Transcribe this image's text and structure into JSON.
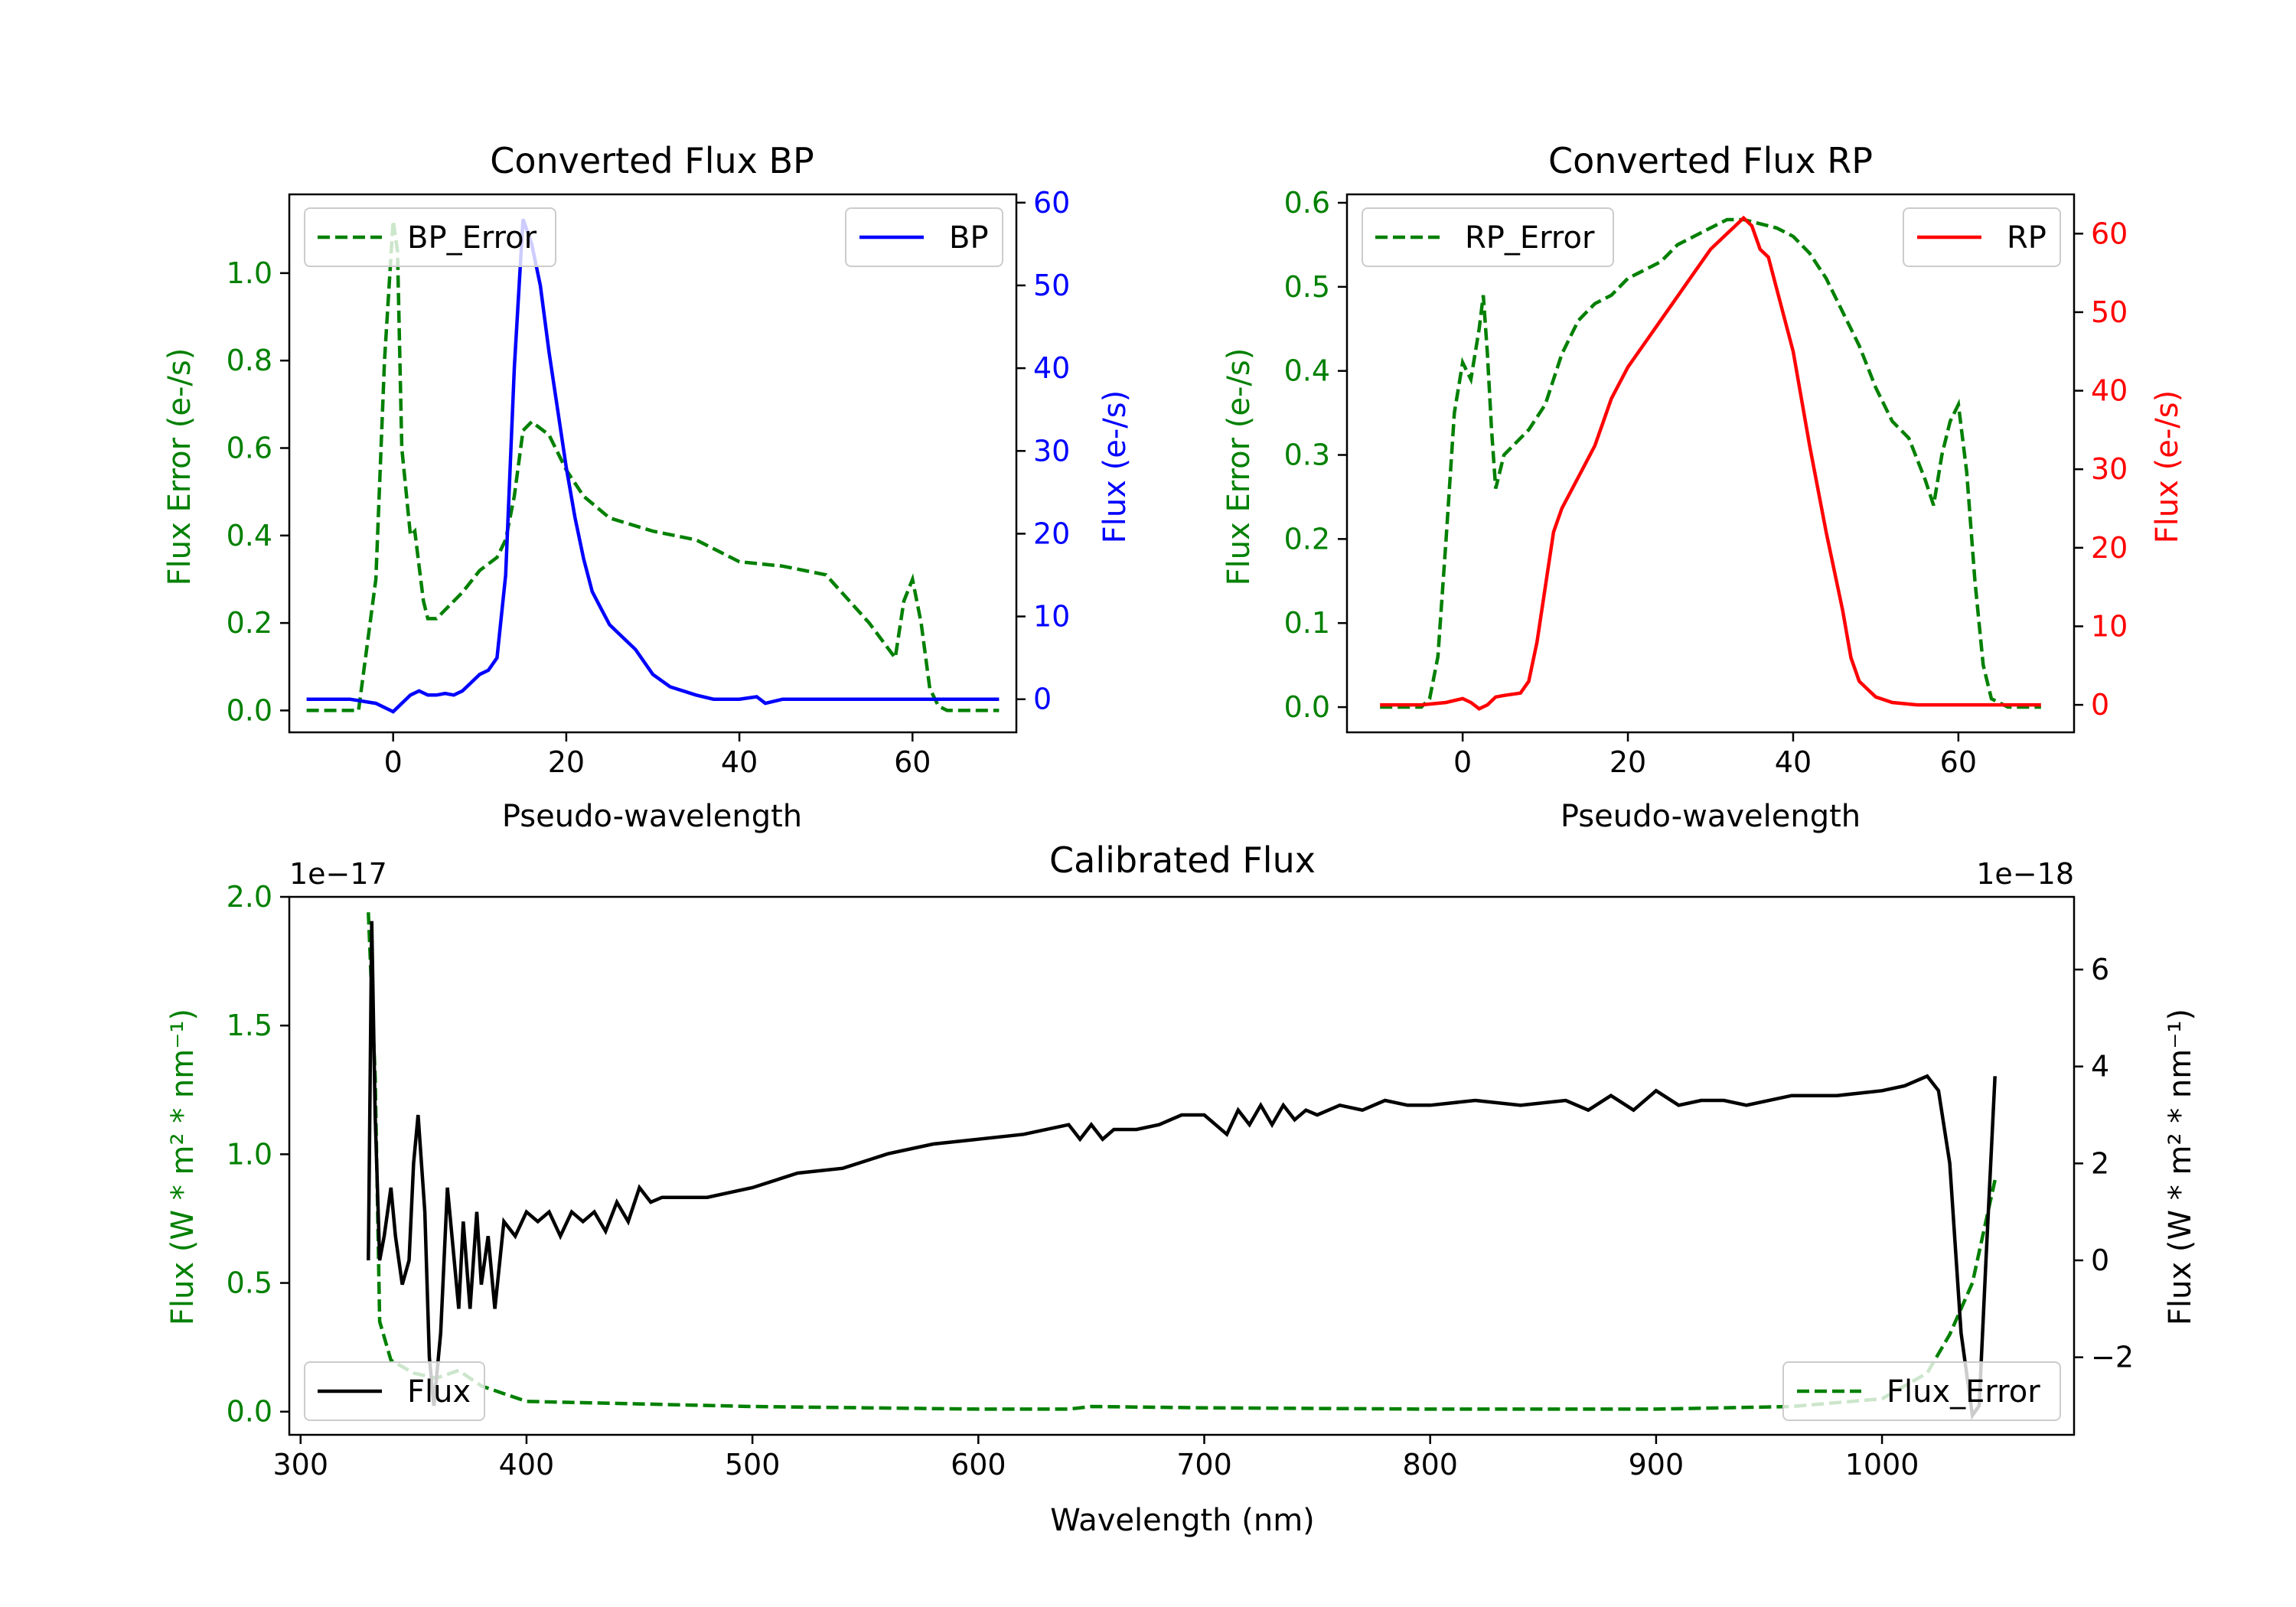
{
  "chart_data": [
    {
      "id": "bp",
      "type": "line",
      "title": "Converted Flux BP",
      "xlabel": "Pseudo-wavelength",
      "xlim": [
        -12,
        72
      ],
      "xticks": [
        0,
        20,
        40,
        60
      ],
      "left_axis": {
        "label": "Flux Error (e-/s)",
        "color": "#008000",
        "ylim": [
          -0.05,
          1.18
        ],
        "ticks": [
          0.0,
          0.2,
          0.4,
          0.6,
          0.8,
          1.0
        ],
        "tick_labels": [
          "0.0",
          "0.2",
          "0.4",
          "0.6",
          "0.8",
          "1.0"
        ]
      },
      "right_axis": {
        "label": "Flux (e-/s)",
        "color": "#0000ff",
        "ylim": [
          -4,
          61
        ],
        "ticks": [
          0,
          10,
          20,
          30,
          40,
          50,
          60
        ],
        "tick_labels": [
          "0",
          "10",
          "20",
          "30",
          "40",
          "50",
          "60"
        ]
      },
      "series": [
        {
          "name": "BP_Error",
          "axis": "left",
          "style": "dashed",
          "color": "#008000",
          "x": [
            -10,
            -4,
            -2,
            -1,
            0,
            0.5,
            1,
            2,
            2.5,
            3,
            3.5,
            4,
            5,
            8,
            10,
            12,
            13,
            14,
            15,
            16,
            18,
            20,
            22,
            25,
            30,
            35,
            40,
            45,
            50,
            55,
            58,
            59,
            60,
            61,
            62,
            63,
            64,
            66,
            70
          ],
          "values": [
            0.0,
            0.0,
            0.3,
            0.8,
            1.12,
            1.05,
            0.6,
            0.4,
            0.41,
            0.33,
            0.25,
            0.21,
            0.21,
            0.27,
            0.32,
            0.35,
            0.39,
            0.49,
            0.64,
            0.66,
            0.63,
            0.55,
            0.49,
            0.44,
            0.41,
            0.39,
            0.34,
            0.33,
            0.31,
            0.2,
            0.12,
            0.25,
            0.3,
            0.2,
            0.05,
            0.01,
            0.0,
            0.0,
            0.0
          ]
        },
        {
          "name": "BP",
          "axis": "right",
          "style": "solid",
          "color": "#0000ff",
          "x": [
            -10,
            -5,
            -2,
            0,
            1,
            2,
            3,
            4,
            5,
            6,
            7,
            8,
            9,
            10,
            11,
            12,
            13,
            14,
            15,
            16,
            17,
            18,
            19,
            20,
            21,
            22,
            23,
            24,
            25,
            26,
            28,
            30,
            32,
            35,
            37,
            40,
            42,
            43,
            45,
            50,
            55,
            60,
            65,
            70
          ],
          "values": [
            0,
            0,
            -0.5,
            -1.5,
            -0.5,
            0.5,
            1,
            0.5,
            0.5,
            0.7,
            0.5,
            1,
            2,
            3,
            3.5,
            5,
            15,
            40,
            58,
            55,
            50,
            42,
            35,
            28,
            22,
            17,
            13,
            11,
            9,
            8,
            6,
            3,
            1.5,
            0.5,
            0,
            0,
            0.3,
            -0.5,
            0,
            0,
            0,
            0,
            0,
            0
          ]
        }
      ],
      "legend": [
        {
          "label": "BP_Error",
          "location": "upper-left"
        },
        {
          "label": "BP",
          "location": "upper-right"
        }
      ]
    },
    {
      "id": "rp",
      "type": "line",
      "title": "Converted Flux RP",
      "xlabel": "Pseudo-wavelength",
      "xlim": [
        -14,
        74
      ],
      "xticks": [
        0,
        20,
        40,
        60
      ],
      "left_axis": {
        "label": "Flux Error (e-/s)",
        "color": "#008000",
        "ylim": [
          -0.03,
          0.61
        ],
        "ticks": [
          0.0,
          0.1,
          0.2,
          0.3,
          0.4,
          0.5,
          0.6
        ],
        "tick_labels": [
          "0.0",
          "0.1",
          "0.2",
          "0.3",
          "0.4",
          "0.5",
          "0.6"
        ]
      },
      "right_axis": {
        "label": "Flux (e-/s)",
        "color": "#ff0000",
        "ylim": [
          -3.5,
          65
        ],
        "ticks": [
          0,
          10,
          20,
          30,
          40,
          50,
          60
        ],
        "tick_labels": [
          "0",
          "10",
          "20",
          "30",
          "40",
          "50",
          "60"
        ]
      },
      "series": [
        {
          "name": "RP_Error",
          "axis": "left",
          "style": "dashed",
          "color": "#008000",
          "x": [
            -10,
            -5,
            -4,
            -3,
            -2,
            -1,
            0,
            1,
            1.5,
            2,
            2.5,
            3,
            3.5,
            4,
            5,
            6,
            8,
            10,
            12,
            14,
            16,
            18,
            20,
            22,
            24,
            26,
            28,
            30,
            32,
            34,
            36,
            38,
            40,
            42,
            44,
            46,
            48,
            50,
            52,
            54,
            56,
            57,
            58,
            59,
            60,
            61,
            62,
            63,
            64,
            66,
            70
          ],
          "values": [
            0.0,
            0.0,
            0.01,
            0.06,
            0.2,
            0.35,
            0.41,
            0.39,
            0.42,
            0.45,
            0.49,
            0.42,
            0.33,
            0.26,
            0.3,
            0.31,
            0.33,
            0.36,
            0.42,
            0.46,
            0.48,
            0.49,
            0.51,
            0.52,
            0.53,
            0.55,
            0.56,
            0.57,
            0.58,
            0.58,
            0.575,
            0.57,
            0.56,
            0.54,
            0.51,
            0.47,
            0.43,
            0.38,
            0.34,
            0.32,
            0.27,
            0.24,
            0.3,
            0.34,
            0.36,
            0.28,
            0.15,
            0.05,
            0.01,
            0.0,
            0.0
          ]
        },
        {
          "name": "RP",
          "axis": "right",
          "style": "solid",
          "color": "#ff0000",
          "x": [
            -10,
            -5,
            -2,
            0,
            1,
            2,
            3,
            4,
            5,
            7,
            8,
            9,
            10,
            11,
            12,
            13,
            14,
            15,
            16,
            17,
            18,
            20,
            22,
            24,
            26,
            28,
            30,
            32,
            33,
            34,
            35,
            36,
            37,
            38,
            40,
            42,
            44,
            46,
            47,
            48,
            49,
            50,
            52,
            55,
            60,
            65,
            70
          ],
          "values": [
            0,
            0,
            0.3,
            0.8,
            0.3,
            -0.5,
            0,
            1,
            1.2,
            1.5,
            3,
            8,
            15,
            22,
            25,
            27,
            29,
            31,
            33,
            36,
            39,
            43,
            46,
            49,
            52,
            55,
            58,
            60,
            61,
            62,
            61,
            58,
            57,
            53,
            45,
            33,
            22,
            12,
            6,
            3,
            2,
            1,
            0.3,
            0,
            0,
            0,
            0
          ]
        }
      ],
      "legend": [
        {
          "label": "RP_Error",
          "location": "upper-left"
        },
        {
          "label": "RP",
          "location": "upper-right"
        }
      ]
    },
    {
      "id": "cal",
      "type": "line",
      "title": "Calibrated Flux",
      "xlabel": "Wavelength (nm)",
      "xlim": [
        295,
        1085
      ],
      "xticks": [
        300,
        400,
        500,
        600,
        700,
        800,
        900,
        1000
      ],
      "left_axis": {
        "label": "Flux (W * m² * nm⁻¹)",
        "color": "#008000",
        "offset_text": "1e−17",
        "ylim": [
          -0.09,
          2.0
        ],
        "ticks": [
          0.0,
          0.5,
          1.0,
          1.5,
          2.0
        ],
        "tick_labels": [
          "0.0",
          "0.5",
          "1.0",
          "1.5",
          "2.0"
        ]
      },
      "right_axis": {
        "label": "Flux (W * m² * nm⁻¹)",
        "color": "#000000",
        "offset_text": "1e−18",
        "ylim": [
          -3.6,
          7.5
        ],
        "ticks": [
          -2,
          0,
          2,
          4,
          6
        ],
        "tick_labels": [
          "−2",
          "0",
          "2",
          "4",
          "6"
        ]
      },
      "series": [
        {
          "name": "Flux_Error",
          "axis": "left",
          "style": "dashed",
          "color": "#008000",
          "x": [
            330,
            333,
            335,
            340,
            350,
            360,
            370,
            380,
            390,
            400,
            450,
            500,
            550,
            600,
            640,
            650,
            700,
            800,
            900,
            960,
            1000,
            1020,
            1030,
            1040,
            1045,
            1050
          ],
          "values": [
            1.94,
            1.3,
            0.35,
            0.2,
            0.15,
            0.13,
            0.16,
            0.1,
            0.07,
            0.04,
            0.03,
            0.02,
            0.015,
            0.01,
            0.01,
            0.02,
            0.015,
            0.01,
            0.01,
            0.02,
            0.05,
            0.15,
            0.3,
            0.5,
            0.7,
            0.9
          ]
        },
        {
          "name": "Flux",
          "axis": "right",
          "style": "solid",
          "color": "#000000",
          "x": [
            330,
            331.5,
            333,
            335,
            337,
            340,
            342,
            345,
            348,
            350,
            352,
            355,
            357,
            359,
            362,
            365,
            368,
            370,
            372,
            375,
            378,
            380,
            383,
            386,
            390,
            395,
            400,
            405,
            410,
            415,
            420,
            425,
            430,
            435,
            440,
            445,
            450,
            455,
            460,
            470,
            480,
            490,
            500,
            520,
            540,
            560,
            580,
            600,
            620,
            640,
            645,
            650,
            655,
            660,
            670,
            680,
            690,
            700,
            710,
            715,
            720,
            725,
            730,
            735,
            740,
            745,
            750,
            760,
            770,
            780,
            790,
            800,
            820,
            840,
            860,
            870,
            880,
            890,
            900,
            910,
            920,
            930,
            940,
            960,
            980,
            1000,
            1010,
            1020,
            1025,
            1030,
            1035,
            1040,
            1043,
            1046,
            1050
          ],
          "values": [
            0,
            7,
            3,
            0,
            0.5,
            1.5,
            0.5,
            -0.5,
            0,
            2,
            3,
            1,
            -2,
            -3,
            -1.5,
            1.5,
            0,
            -1,
            0.8,
            -1,
            1,
            -0.5,
            0.5,
            -1,
            0.8,
            0.5,
            1,
            0.8,
            1,
            0.5,
            1,
            0.8,
            1,
            0.6,
            1.2,
            0.8,
            1.5,
            1.2,
            1.3,
            1.3,
            1.3,
            1.4,
            1.5,
            1.8,
            1.9,
            2.2,
            2.4,
            2.5,
            2.6,
            2.8,
            2.5,
            2.8,
            2.5,
            2.7,
            2.7,
            2.8,
            3.0,
            3.0,
            2.6,
            3.1,
            2.8,
            3.2,
            2.8,
            3.2,
            2.9,
            3.1,
            3.0,
            3.2,
            3.1,
            3.3,
            3.2,
            3.2,
            3.3,
            3.2,
            3.3,
            3.1,
            3.4,
            3.1,
            3.5,
            3.2,
            3.3,
            3.3,
            3.2,
            3.4,
            3.4,
            3.5,
            3.6,
            3.8,
            3.5,
            2.0,
            -1.5,
            -3.2,
            -3.0,
            0,
            3.8
          ]
        }
      ],
      "legend": [
        {
          "label": "Flux",
          "location": "lower-left"
        },
        {
          "label": "Flux_Error",
          "location": "lower-right"
        }
      ]
    }
  ]
}
